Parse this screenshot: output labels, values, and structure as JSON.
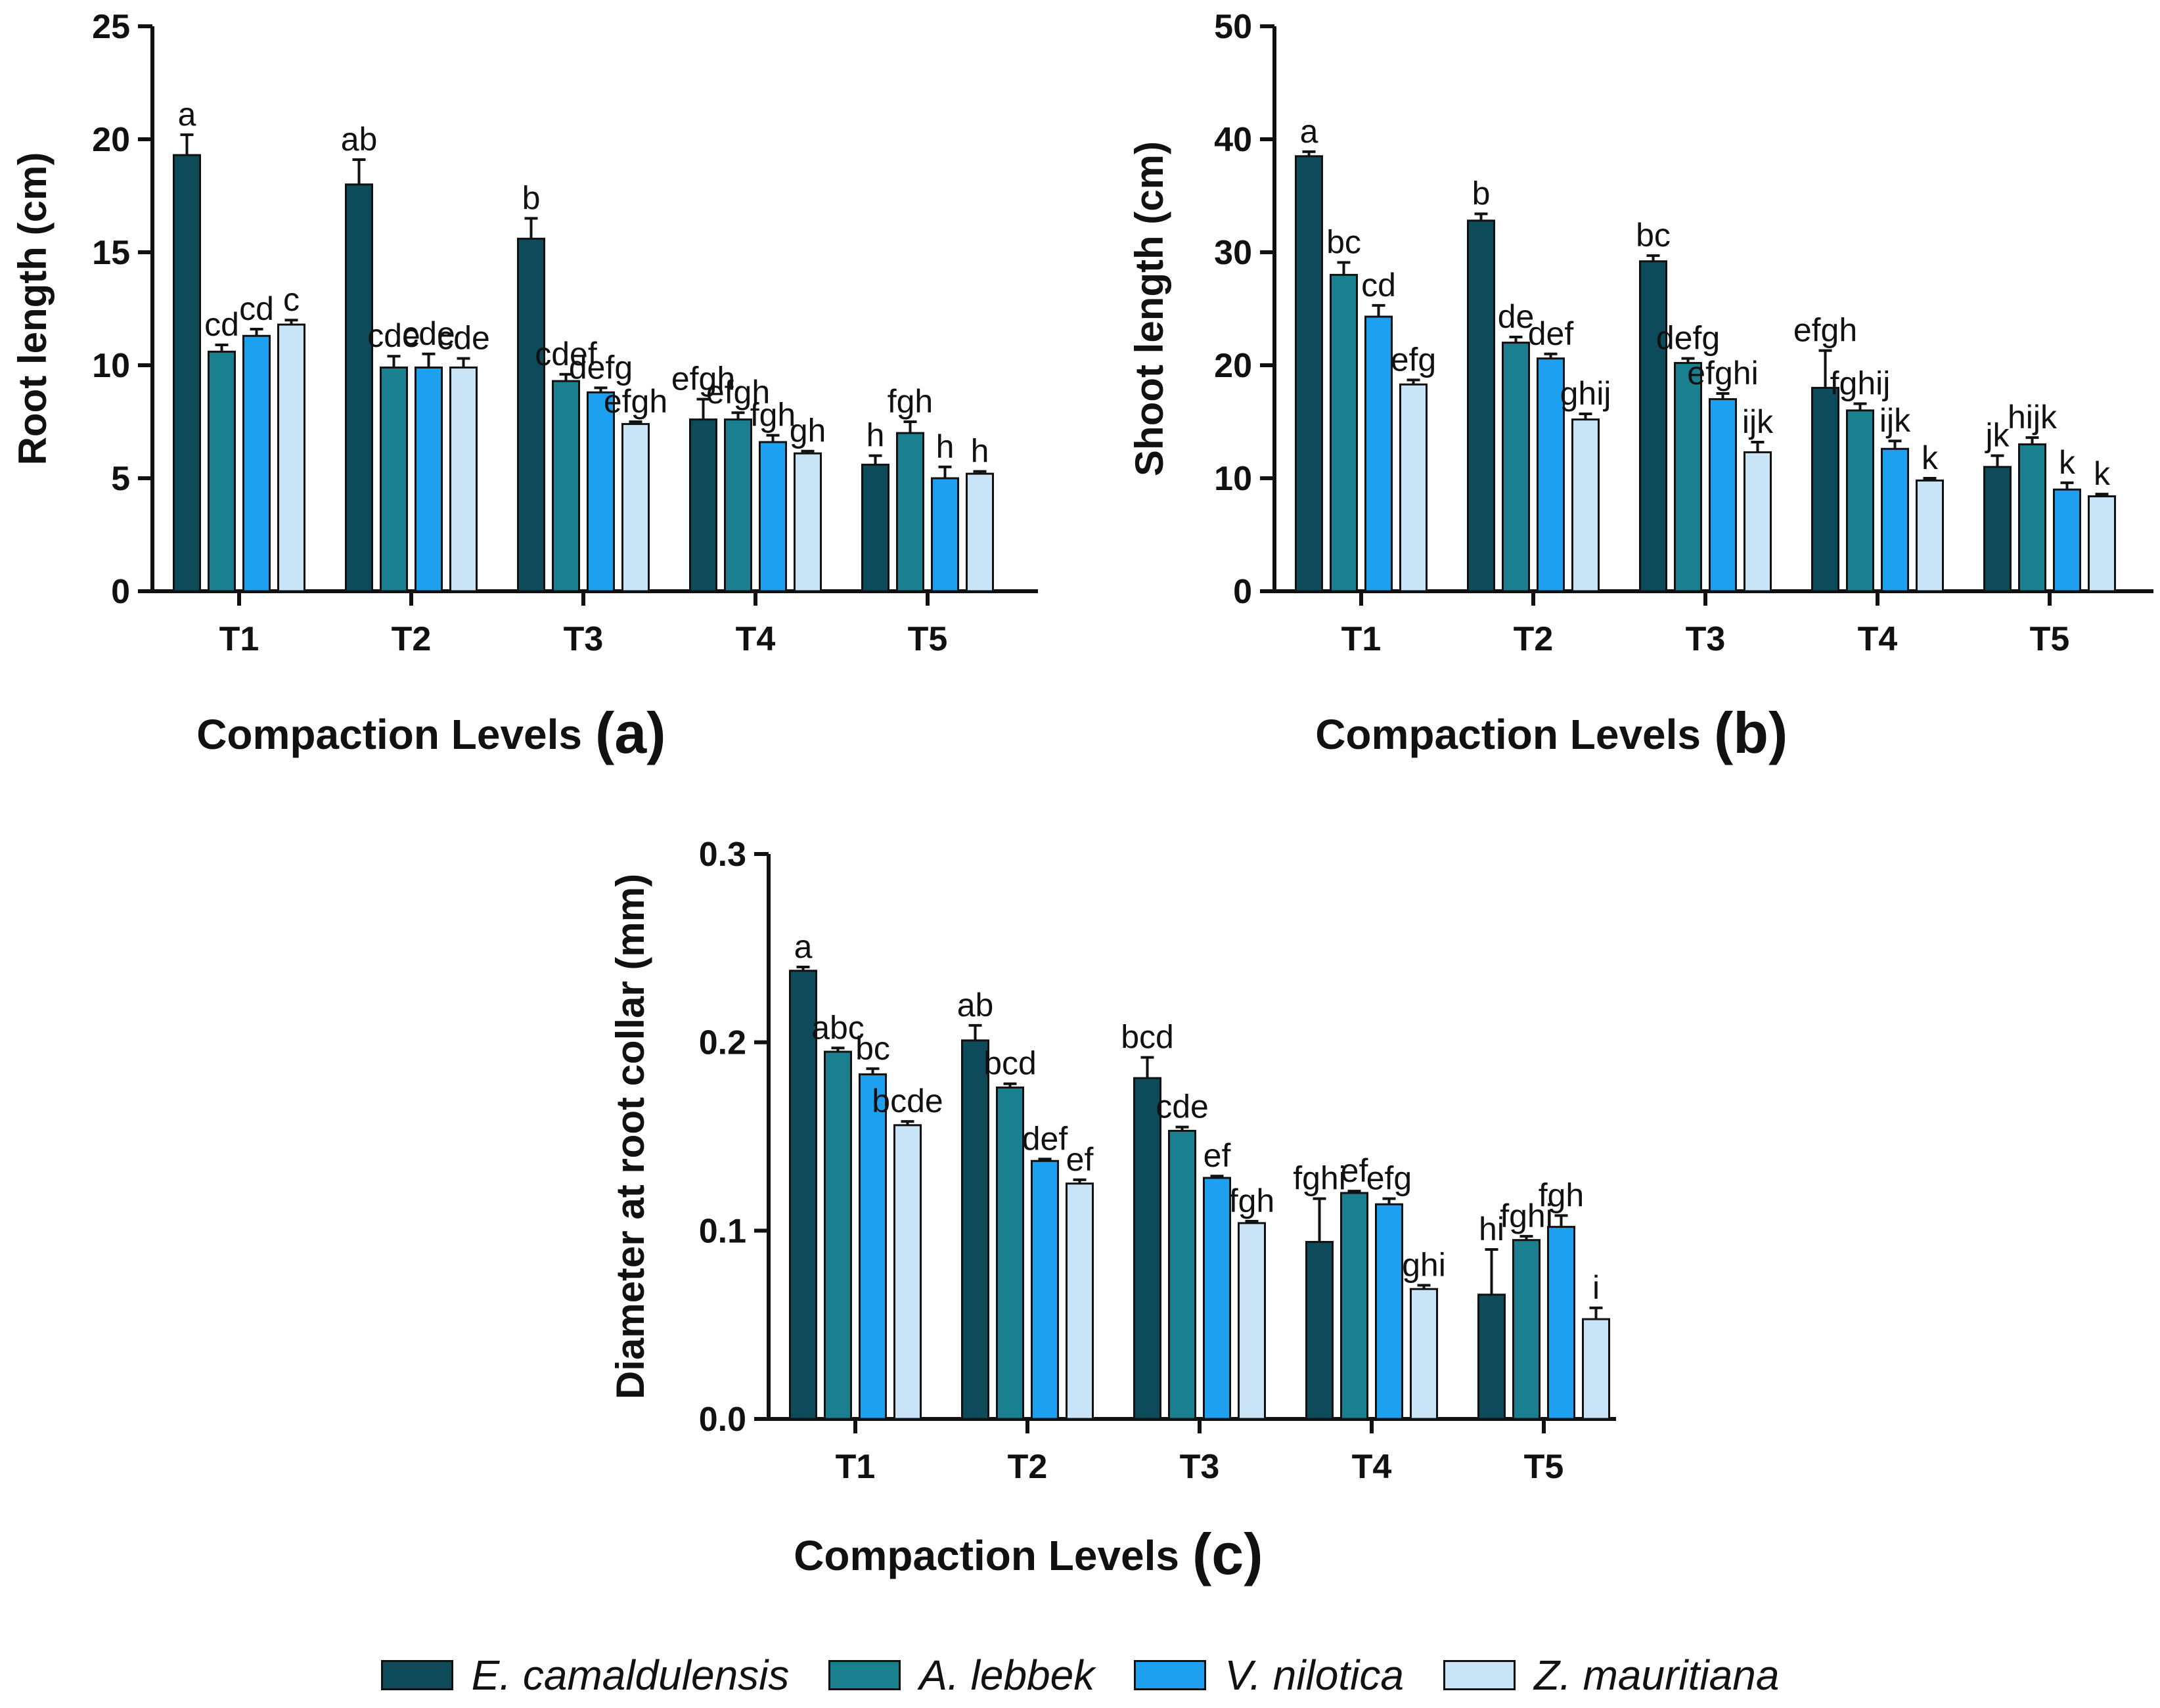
{
  "chart_data": [
    {
      "id": "a",
      "type": "bar",
      "panel_letter": "(a)",
      "title": "",
      "xlabel": "Compaction Levels",
      "ylabel": "Root length (cm)",
      "ylim": [
        0,
        25
      ],
      "yticks": [
        0,
        5,
        10,
        15,
        20,
        25
      ],
      "ytick_labels": [
        "0",
        "5",
        "10",
        "15",
        "20",
        "25"
      ],
      "categories": [
        "T1",
        "T2",
        "T3",
        "T4",
        "T5"
      ],
      "series": [
        {
          "name": "E. camaldulensis",
          "values": [
            19.3,
            18.0,
            15.6,
            7.6,
            5.6
          ],
          "errors": [
            0.9,
            1.1,
            0.9,
            0.9,
            0.4
          ],
          "letters": [
            "a",
            "ab",
            "b",
            "efgh",
            "h"
          ]
        },
        {
          "name": "A. lebbek",
          "values": [
            10.6,
            9.9,
            9.3,
            7.6,
            7.0
          ],
          "errors": [
            0.3,
            0.5,
            0.3,
            0.3,
            0.5
          ],
          "letters": [
            "cd",
            "cde",
            "cdef",
            "efgh",
            "fgh"
          ]
        },
        {
          "name": "V. nilotica",
          "values": [
            11.3,
            9.9,
            8.8,
            6.6,
            5.0
          ],
          "errors": [
            0.3,
            0.6,
            0.2,
            0.3,
            0.5
          ],
          "letters": [
            "cd",
            "cde",
            "defg",
            "fgh",
            "h"
          ]
        },
        {
          "name": "Z. mauritiana",
          "values": [
            11.8,
            9.9,
            7.4,
            6.1,
            5.2
          ],
          "errors": [
            0.2,
            0.4,
            0.1,
            0.1,
            0.1
          ],
          "letters": [
            "c",
            "cde",
            "efgh",
            "gh",
            "h"
          ]
        }
      ]
    },
    {
      "id": "b",
      "type": "bar",
      "panel_letter": "(b)",
      "title": "",
      "xlabel": "Compaction Levels",
      "ylabel": "Shoot length (cm)",
      "ylim": [
        0,
        50
      ],
      "yticks": [
        0,
        10,
        20,
        30,
        40,
        50
      ],
      "ytick_labels": [
        "0",
        "10",
        "20",
        "30",
        "40",
        "50"
      ],
      "categories": [
        "T1",
        "T2",
        "T3",
        "T4",
        "T5"
      ],
      "series": [
        {
          "name": "E. camaldulensis",
          "values": [
            38.5,
            32.8,
            29.2,
            18.0,
            11.0
          ],
          "errors": [
            0.4,
            0.6,
            0.5,
            3.3,
            1.0
          ],
          "letters": [
            "a",
            "b",
            "bc",
            "efgh",
            "jk"
          ]
        },
        {
          "name": "A. lebbek",
          "values": [
            28.0,
            22.0,
            20.2,
            16.0,
            13.0
          ],
          "errors": [
            1.1,
            0.5,
            0.4,
            0.6,
            0.6
          ],
          "letters": [
            "bc",
            "de",
            "defg",
            "fghij",
            "hijk"
          ]
        },
        {
          "name": "V. nilotica",
          "values": [
            24.3,
            20.6,
            17.0,
            12.6,
            9.0
          ],
          "errors": [
            1.0,
            0.4,
            0.5,
            0.7,
            0.6
          ],
          "letters": [
            "cd",
            "def",
            "efghi",
            "ijk",
            "k"
          ]
        },
        {
          "name": "Z. mauritiana",
          "values": [
            18.3,
            15.2,
            12.3,
            9.8,
            8.4
          ],
          "errors": [
            0.4,
            0.5,
            0.9,
            0.2,
            0.2
          ],
          "letters": [
            "efg",
            "ghij",
            "ijk",
            "k",
            "k"
          ]
        }
      ]
    },
    {
      "id": "c",
      "type": "bar",
      "panel_letter": "(c)",
      "title": "",
      "xlabel": "Compaction Levels",
      "ylabel": "Diameter at root collar (mm)",
      "ylim": [
        0,
        0.3
      ],
      "yticks": [
        0,
        0.1,
        0.2,
        0.3
      ],
      "ytick_labels": [
        "0.0",
        "0.1",
        "0.2",
        "0.3"
      ],
      "categories": [
        "T1",
        "T2",
        "T3",
        "T4",
        "T5"
      ],
      "series": [
        {
          "name": "E. camaldulensis",
          "values": [
            0.238,
            0.201,
            0.181,
            0.094,
            0.066
          ],
          "errors": [
            0.002,
            0.008,
            0.011,
            0.023,
            0.024
          ],
          "letters": [
            "a",
            "ab",
            "bcd",
            "fghi",
            "hi"
          ]
        },
        {
          "name": "A. lebbek",
          "values": [
            0.195,
            0.176,
            0.153,
            0.12,
            0.095
          ],
          "errors": [
            0.002,
            0.002,
            0.002,
            0.001,
            0.002
          ],
          "letters": [
            "abc",
            "bcd",
            "cde",
            "ef",
            "fghi"
          ]
        },
        {
          "name": "V. nilotica",
          "values": [
            0.183,
            0.137,
            0.128,
            0.114,
            0.102
          ],
          "errors": [
            0.003,
            0.001,
            0.001,
            0.003,
            0.006
          ],
          "letters": [
            "bc",
            "def",
            "ef",
            "efg",
            "fgh"
          ]
        },
        {
          "name": "Z. mauritiana",
          "values": [
            0.156,
            0.125,
            0.104,
            0.069,
            0.053
          ],
          "errors": [
            0.002,
            0.002,
            0.001,
            0.002,
            0.006
          ],
          "letters": [
            "bcde",
            "ef",
            "fgh",
            "ghi",
            "i"
          ]
        }
      ]
    }
  ],
  "legend": {
    "items": [
      {
        "label": "E. camaldulensis",
        "color": "#0d4a5a"
      },
      {
        "label": "A. lebbek",
        "color": "#1a7f8e"
      },
      {
        "label": "V. nilotica",
        "color": "#1ea0f0"
      },
      {
        "label": "Z. mauritiana",
        "color": "#c9e3f7"
      }
    ]
  },
  "colors": {
    "series": [
      "#0d4a5a",
      "#1a7f8e",
      "#1ea0f0",
      "#c9e3f7"
    ],
    "ink": "#111111"
  }
}
